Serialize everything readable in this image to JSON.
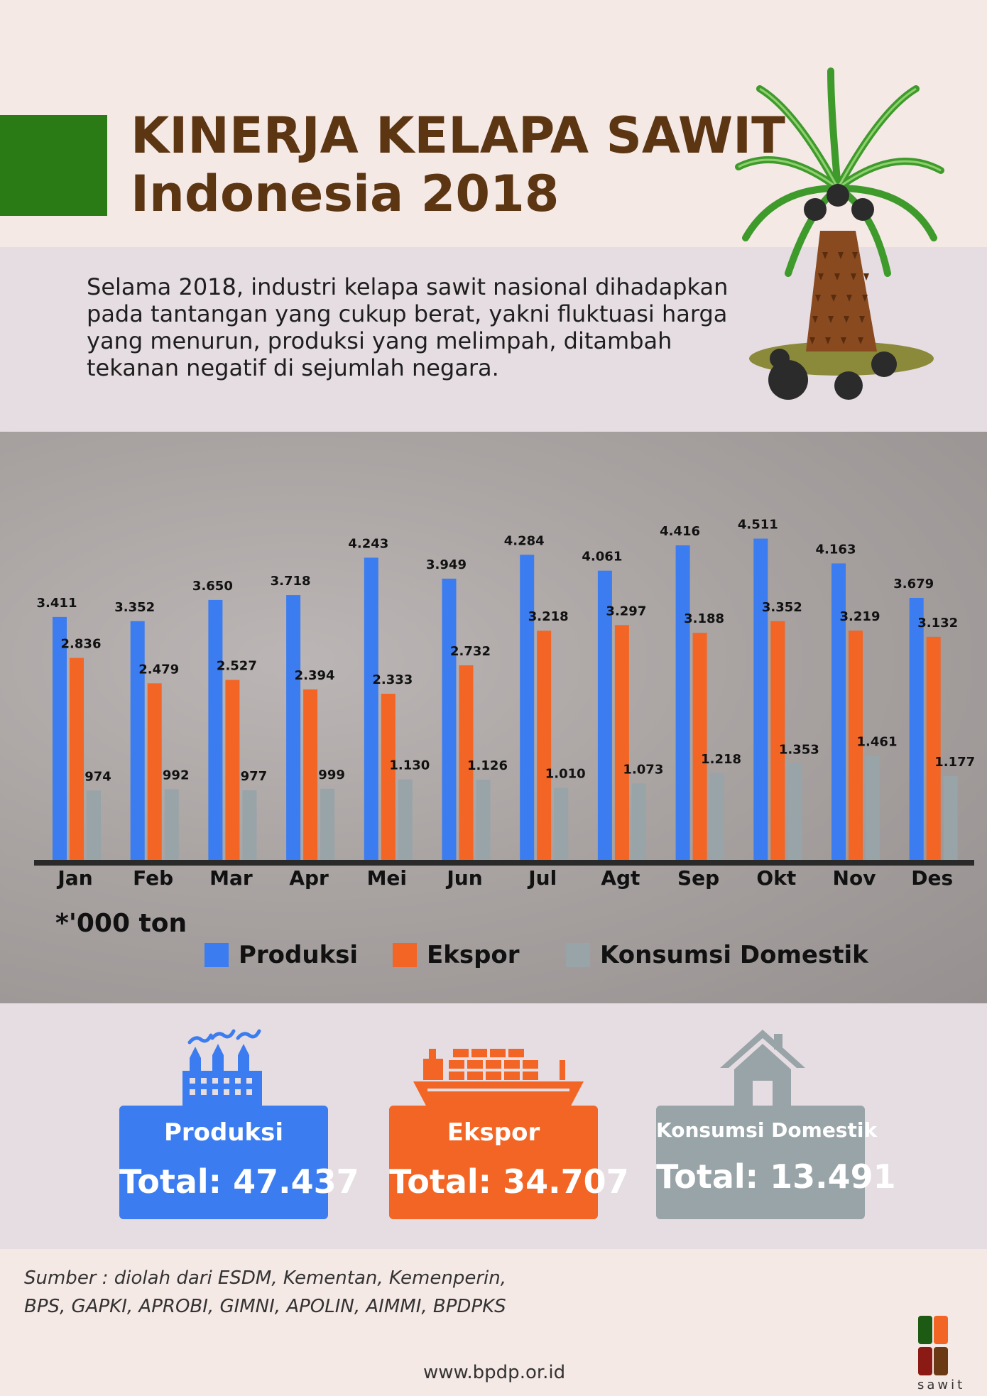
{
  "header": {
    "title_line1": "KINERJA KELAPA SAWIT",
    "title_line2": "Indonesia 2018"
  },
  "intro_text": "Selama 2018, industri kelapa sawit nasional dihadapkan pada tantangan yang cukup berat, yakni fluktuasi harga yang menurun, produksi yang melimpah, ditambah tekanan negatif di sejumlah negara.",
  "unit_note": "*'000 ton",
  "colors": {
    "produksi": "#3b7cf0",
    "ekspor": "#f26524",
    "konsumsi": "#98a4a8",
    "title_brown": "#5c3512",
    "green": "#2a7a16"
  },
  "chart_data": {
    "type": "bar",
    "categories": [
      "Jan",
      "Feb",
      "Mar",
      "Apr",
      "Mei",
      "Jun",
      "Jul",
      "Agt",
      "Sep",
      "Okt",
      "Nov",
      "Des"
    ],
    "series": [
      {
        "name": "Produksi",
        "values": [
          3411,
          3352,
          3650,
          3718,
          4243,
          3949,
          4284,
          4061,
          4416,
          4511,
          4163,
          3679
        ],
        "labels": [
          "3.411",
          "3.352",
          "3.650",
          "3.718",
          "4.243",
          "3.949",
          "4.284",
          "4.061",
          "4.416",
          "4.511",
          "4.163",
          "3.679"
        ]
      },
      {
        "name": "Ekspor",
        "values": [
          2836,
          2479,
          2527,
          2394,
          2333,
          2732,
          3218,
          3297,
          3188,
          3352,
          3219,
          3132
        ],
        "labels": [
          "2.836",
          "2.479",
          "2.527",
          "2.394",
          "2.333",
          "2.732",
          "3.218",
          "3.297",
          "3.188",
          "3.352",
          "3.219",
          "3.132"
        ]
      },
      {
        "name": "Konsumsi Domestik",
        "values": [
          974,
          992,
          977,
          999,
          1130,
          1126,
          1010,
          1073,
          1218,
          1353,
          1461,
          1177
        ],
        "labels": [
          "974",
          "992",
          "977",
          "999",
          "1.130",
          "1.126",
          "1.010",
          "1.073",
          "1.218",
          "1.353",
          "1.461",
          "1.177"
        ]
      }
    ],
    "legend_placement": "bottom",
    "grid": false
  },
  "legend": {
    "produksi": "Produksi",
    "ekspor": "Ekspor",
    "konsumsi": "Konsumsi Domestik"
  },
  "totals": {
    "produksi": {
      "title": "Produksi",
      "total": "Total: 47.437"
    },
    "ekspor": {
      "title": "Ekspor",
      "total": "Total: 34.707"
    },
    "konsumsi": {
      "title": "Konsumsi Domestik",
      "total": "Total: 13.491"
    }
  },
  "source": {
    "line1": "Sumber : diolah dari ESDM, Kementan, Kemenperin,",
    "line2": "BPS, GAPKI, APROBI, GIMNI, APOLIN, AIMMI, BPDPKS"
  },
  "url": "www.bpdp.or.id",
  "logo_word": "sawit"
}
